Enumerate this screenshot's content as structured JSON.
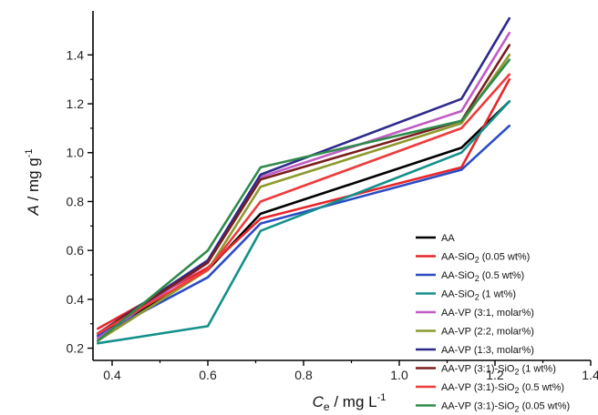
{
  "chart_data": {
    "type": "line",
    "xlabel": {
      "main": "C",
      "sub": "e",
      "unit": " / mg L",
      "sup": "-1"
    },
    "ylabel": {
      "main": "A",
      "unit": " / mg g",
      "sup": "-1"
    },
    "xlim": [
      0.36,
      1.4
    ],
    "ylim": [
      0.15,
      1.58
    ],
    "xticks": [
      0.4,
      0.6,
      0.8,
      1.0,
      1.2,
      1.4
    ],
    "xtick_labels": [
      "0.4",
      "0.6",
      "0.8",
      "1.0",
      "1.2",
      "1.4"
    ],
    "yticks": [
      0.2,
      0.4,
      0.6,
      0.8,
      1.0,
      1.2,
      1.4
    ],
    "ytick_labels": [
      "0.2",
      "0.4",
      "0.6",
      "0.8",
      "1.0",
      "1.2",
      "1.4"
    ],
    "grid": false,
    "legend_position": "bottom-right",
    "x": [
      0.37,
      0.6,
      0.71,
      1.13,
      1.23
    ],
    "series": [
      {
        "label": {
          "pre": "AA",
          "sub": "",
          "post": ""
        },
        "color": "#000000",
        "values": [
          0.25,
          0.52,
          0.75,
          1.02,
          1.21
        ]
      },
      {
        "label": {
          "pre": "AA-SiO",
          "sub": "2",
          "post": " (0.05 wt%)"
        },
        "color": "#e8252a",
        "values": [
          0.28,
          0.53,
          0.73,
          0.94,
          1.3
        ]
      },
      {
        "label": {
          "pre": "AA-SiO",
          "sub": "2",
          "post": " (0.5 wt%)"
        },
        "color": "#2b4cc4",
        "values": [
          0.25,
          0.49,
          0.71,
          0.93,
          1.11
        ]
      },
      {
        "label": {
          "pre": "AA-SiO",
          "sub": "2",
          "post": " (1 wt%)"
        },
        "color": "#14908a",
        "values": [
          0.22,
          0.29,
          0.68,
          1.0,
          1.21
        ]
      },
      {
        "label": {
          "pre": "AA-VP (3:1, molar%)",
          "sub": "",
          "post": ""
        },
        "color": "#c05cc4",
        "values": [
          0.24,
          0.55,
          0.9,
          1.17,
          1.49
        ]
      },
      {
        "label": {
          "pre": "AA-VP (2:2, molar%)",
          "sub": "",
          "post": ""
        },
        "color": "#8c9a2e",
        "values": [
          0.23,
          0.52,
          0.86,
          1.12,
          1.4
        ]
      },
      {
        "label": {
          "pre": "AA-VP (1:3, molar%)",
          "sub": "",
          "post": ""
        },
        "color": "#2e2a8c",
        "values": [
          0.26,
          0.56,
          0.91,
          1.22,
          1.55
        ]
      },
      {
        "label": {
          "pre": "AA-VP (3:1)-SiO",
          "sub": "2",
          "post": " (1 wt%)"
        },
        "color": "#7a1d1d",
        "values": [
          0.26,
          0.55,
          0.89,
          1.13,
          1.44
        ]
      },
      {
        "label": {
          "pre": "AA-VP (3:1)-SiO",
          "sub": "2",
          "post": " (0.5 wt%)"
        },
        "color": "#ee3b3b",
        "values": [
          0.26,
          0.52,
          0.8,
          1.1,
          1.32
        ]
      },
      {
        "label": {
          "pre": "AA-VP (3:1)-SiO",
          "sub": "2",
          "post": " (0.05 wt%)"
        },
        "color": "#2f8a4c",
        "values": [
          0.23,
          0.6,
          0.94,
          1.13,
          1.38
        ]
      }
    ]
  }
}
